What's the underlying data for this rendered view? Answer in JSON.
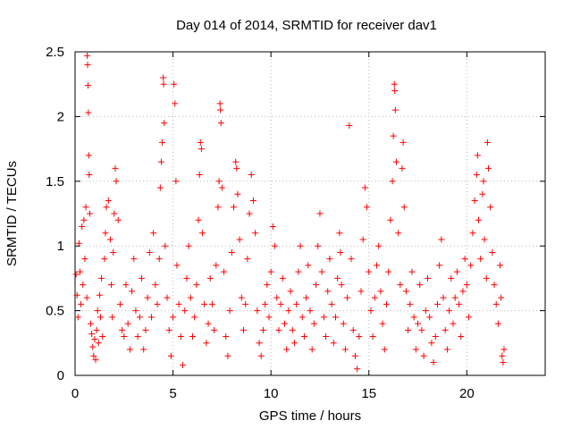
{
  "chart_data": {
    "type": "scatter",
    "title": "Day 014 of 2014, SRMTID for receiver dav1",
    "xlabel": "GPS time / hours",
    "ylabel": "SRMTID / TECUs",
    "xlim": [
      0,
      24
    ],
    "ylim": [
      0,
      2.5
    ],
    "xticks": [
      0,
      5,
      10,
      15,
      20
    ],
    "xtick_labels": [
      "0",
      "5",
      "10",
      "15",
      "20"
    ],
    "yticks": [
      0,
      0.5,
      1,
      1.5,
      2,
      2.5
    ],
    "ytick_labels": [
      "0",
      "0.5",
      "1",
      "1.5",
      "2",
      "2.5"
    ],
    "grid": true,
    "marker": "+",
    "series": [
      {
        "name": "SRMTID",
        "color": "#ff0000",
        "points": [
          [
            0.05,
            0.78
          ],
          [
            0.1,
            0.62
          ],
          [
            0.15,
            0.45
          ],
          [
            0.2,
            1.02
          ],
          [
            0.25,
            0.8
          ],
          [
            0.3,
            0.55
          ],
          [
            0.35,
            1.15
          ],
          [
            0.4,
            0.7
          ],
          [
            0.45,
            1.2
          ],
          [
            0.5,
            0.9
          ],
          [
            0.55,
            1.3
          ],
          [
            0.6,
            0.6
          ],
          [
            0.62,
            2.47
          ],
          [
            0.64,
            2.4
          ],
          [
            0.66,
            2.24
          ],
          [
            0.68,
            2.03
          ],
          [
            0.7,
            1.7
          ],
          [
            0.72,
            1.55
          ],
          [
            0.75,
            1.25
          ],
          [
            0.8,
            0.4
          ],
          [
            0.85,
            0.32
          ],
          [
            0.9,
            0.22
          ],
          [
            0.95,
            0.15
          ],
          [
            1.0,
            0.28
          ],
          [
            1.05,
            0.12
          ],
          [
            1.1,
            0.35
          ],
          [
            1.15,
            0.5
          ],
          [
            1.2,
            0.25
          ],
          [
            1.25,
            0.62
          ],
          [
            1.3,
            0.45
          ],
          [
            1.35,
            0.75
          ],
          [
            1.4,
            0.3
          ],
          [
            1.5,
            0.9
          ],
          [
            1.55,
            1.1
          ],
          [
            1.6,
            1.3
          ],
          [
            1.7,
            1.35
          ],
          [
            1.8,
            1.05
          ],
          [
            1.85,
            0.7
          ],
          [
            1.9,
            0.45
          ],
          [
            1.95,
            0.95
          ],
          [
            2.0,
            1.25
          ],
          [
            2.05,
            1.6
          ],
          [
            2.1,
            1.5
          ],
          [
            2.2,
            1.2
          ],
          [
            2.3,
            0.55
          ],
          [
            2.4,
            0.35
          ],
          [
            2.5,
            0.3
          ],
          [
            2.6,
            0.7
          ],
          [
            2.7,
            0.4
          ],
          [
            2.8,
            0.2
          ],
          [
            2.9,
            0.65
          ],
          [
            3.0,
            0.9
          ],
          [
            3.1,
            0.5
          ],
          [
            3.2,
            0.3
          ],
          [
            3.3,
            0.45
          ],
          [
            3.4,
            0.75
          ],
          [
            3.5,
            0.2
          ],
          [
            3.6,
            0.35
          ],
          [
            3.7,
            0.6
          ],
          [
            3.8,
            0.95
          ],
          [
            3.9,
            0.45
          ],
          [
            4.0,
            1.1
          ],
          [
            4.1,
            0.7
          ],
          [
            4.2,
            0.55
          ],
          [
            4.3,
            0.9
          ],
          [
            4.35,
            1.45
          ],
          [
            4.4,
            1.65
          ],
          [
            4.45,
            1.8
          ],
          [
            4.5,
            2.3
          ],
          [
            4.52,
            2.25
          ],
          [
            4.55,
            1.95
          ],
          [
            4.6,
            1.0
          ],
          [
            4.7,
            0.6
          ],
          [
            4.8,
            0.35
          ],
          [
            4.9,
            0.15
          ],
          [
            5.0,
            0.45
          ],
          [
            5.05,
            2.25
          ],
          [
            5.1,
            2.1
          ],
          [
            5.15,
            1.5
          ],
          [
            5.2,
            0.85
          ],
          [
            5.3,
            0.55
          ],
          [
            5.4,
            0.3
          ],
          [
            5.5,
            0.08
          ],
          [
            5.6,
            0.5
          ],
          [
            5.7,
            0.75
          ],
          [
            5.8,
            1.0
          ],
          [
            5.9,
            0.6
          ],
          [
            6.0,
            0.3
          ],
          [
            6.1,
            0.45
          ],
          [
            6.2,
            0.7
          ],
          [
            6.3,
            1.2
          ],
          [
            6.35,
            1.55
          ],
          [
            6.4,
            1.8
          ],
          [
            6.45,
            1.75
          ],
          [
            6.5,
            1.1
          ],
          [
            6.6,
            0.55
          ],
          [
            6.7,
            0.25
          ],
          [
            6.8,
            0.4
          ],
          [
            6.9,
            0.75
          ],
          [
            7.0,
            0.55
          ],
          [
            7.1,
            0.35
          ],
          [
            7.2,
            0.85
          ],
          [
            7.3,
            1.3
          ],
          [
            7.35,
            1.5
          ],
          [
            7.4,
            2.1
          ],
          [
            7.42,
            2.05
          ],
          [
            7.45,
            1.95
          ],
          [
            7.5,
            1.45
          ],
          [
            7.6,
            0.8
          ],
          [
            7.7,
            0.3
          ],
          [
            7.8,
            0.15
          ],
          [
            7.9,
            0.5
          ],
          [
            8.0,
            0.95
          ],
          [
            8.1,
            1.3
          ],
          [
            8.2,
            1.65
          ],
          [
            8.25,
            1.6
          ],
          [
            8.3,
            1.4
          ],
          [
            8.4,
            1.05
          ],
          [
            8.5,
            0.6
          ],
          [
            8.6,
            0.35
          ],
          [
            8.7,
            0.55
          ],
          [
            8.8,
            0.9
          ],
          [
            8.9,
            1.25
          ],
          [
            9.0,
            1.55
          ],
          [
            9.1,
            1.35
          ],
          [
            9.2,
            1.1
          ],
          [
            9.3,
            0.5
          ],
          [
            9.4,
            0.25
          ],
          [
            9.5,
            0.15
          ],
          [
            9.6,
            0.35
          ],
          [
            9.7,
            0.55
          ],
          [
            9.8,
            0.7
          ],
          [
            9.9,
            0.45
          ],
          [
            10.0,
            0.8
          ],
          [
            10.1,
            1.15
          ],
          [
            10.2,
            1.0
          ],
          [
            10.3,
            0.6
          ],
          [
            10.4,
            0.35
          ],
          [
            10.5,
            0.55
          ],
          [
            10.6,
            0.75
          ],
          [
            10.7,
            0.4
          ],
          [
            10.8,
            0.2
          ],
          [
            10.9,
            0.5
          ],
          [
            11.0,
            0.65
          ],
          [
            11.1,
            0.35
          ],
          [
            11.2,
            0.25
          ],
          [
            11.3,
            0.55
          ],
          [
            11.4,
            0.8
          ],
          [
            11.5,
            1.0
          ],
          [
            11.6,
            0.45
          ],
          [
            11.7,
            0.3
          ],
          [
            11.8,
            0.6
          ],
          [
            11.9,
            0.85
          ],
          [
            12.0,
            0.5
          ],
          [
            12.1,
            0.2
          ],
          [
            12.2,
            0.4
          ],
          [
            12.3,
            0.7
          ],
          [
            12.4,
            1.0
          ],
          [
            12.5,
            1.25
          ],
          [
            12.6,
            0.8
          ],
          [
            12.7,
            0.45
          ],
          [
            12.8,
            0.3
          ],
          [
            12.9,
            0.65
          ],
          [
            13.0,
            0.9
          ],
          [
            13.1,
            0.55
          ],
          [
            13.2,
            0.25
          ],
          [
            13.3,
            0.45
          ],
          [
            13.4,
            0.75
          ],
          [
            13.5,
            1.1
          ],
          [
            13.55,
            0.95
          ],
          [
            13.6,
            0.7
          ],
          [
            13.7,
            0.4
          ],
          [
            13.8,
            0.2
          ],
          [
            13.9,
            0.6
          ],
          [
            14.0,
            1.93
          ],
          [
            14.1,
            0.9
          ],
          [
            14.2,
            0.35
          ],
          [
            14.3,
            0.15
          ],
          [
            14.4,
            0.05
          ],
          [
            14.5,
            0.3
          ],
          [
            14.6,
            0.65
          ],
          [
            14.7,
            1.05
          ],
          [
            14.8,
            1.45
          ],
          [
            14.9,
            1.3
          ],
          [
            15.0,
            0.8
          ],
          [
            15.1,
            0.5
          ],
          [
            15.2,
            0.3
          ],
          [
            15.3,
            0.6
          ],
          [
            15.4,
            0.85
          ],
          [
            15.5,
            1.0
          ],
          [
            15.6,
            0.65
          ],
          [
            15.7,
            0.4
          ],
          [
            15.8,
            0.2
          ],
          [
            15.9,
            0.55
          ],
          [
            16.0,
            0.8
          ],
          [
            16.1,
            1.2
          ],
          [
            16.2,
            1.5
          ],
          [
            16.25,
            1.85
          ],
          [
            16.3,
            2.25
          ],
          [
            16.32,
            2.2
          ],
          [
            16.35,
            2.05
          ],
          [
            16.4,
            1.65
          ],
          [
            16.5,
            1.1
          ],
          [
            16.6,
            0.7
          ],
          [
            16.7,
            1.6
          ],
          [
            16.75,
            1.8
          ],
          [
            16.8,
            1.3
          ],
          [
            16.9,
            0.65
          ],
          [
            17.0,
            0.35
          ],
          [
            17.1,
            0.55
          ],
          [
            17.2,
            0.8
          ],
          [
            17.3,
            0.45
          ],
          [
            17.4,
            0.2
          ],
          [
            17.5,
            0.4
          ],
          [
            17.6,
            0.7
          ],
          [
            17.7,
            0.35
          ],
          [
            17.8,
            0.15
          ],
          [
            17.9,
            0.5
          ],
          [
            18.0,
            0.75
          ],
          [
            18.1,
            0.45
          ],
          [
            18.2,
            0.25
          ],
          [
            18.3,
            0.1
          ],
          [
            18.4,
            0.3
          ],
          [
            18.5,
            0.55
          ],
          [
            18.6,
            0.85
          ],
          [
            18.7,
            1.05
          ],
          [
            18.8,
            0.6
          ],
          [
            18.9,
            0.35
          ],
          [
            19.0,
            0.2
          ],
          [
            19.1,
            0.5
          ],
          [
            19.2,
            0.75
          ],
          [
            19.3,
            0.4
          ],
          [
            19.4,
            0.6
          ],
          [
            19.5,
            0.8
          ],
          [
            19.6,
            0.55
          ],
          [
            19.7,
            0.3
          ],
          [
            19.8,
            0.65
          ],
          [
            19.9,
            0.9
          ],
          [
            20.0,
            0.7
          ],
          [
            20.1,
            0.45
          ],
          [
            20.2,
            0.85
          ],
          [
            20.3,
            1.1
          ],
          [
            20.4,
            1.35
          ],
          [
            20.5,
            1.55
          ],
          [
            20.55,
            1.7
          ],
          [
            20.6,
            1.2
          ],
          [
            20.7,
            0.9
          ],
          [
            20.8,
            1.4
          ],
          [
            20.85,
            1.5
          ],
          [
            20.9,
            1.05
          ],
          [
            21.0,
            0.75
          ],
          [
            21.05,
            1.8
          ],
          [
            21.1,
            1.6
          ],
          [
            21.2,
            1.3
          ],
          [
            21.3,
            0.95
          ],
          [
            21.4,
            0.7
          ],
          [
            21.5,
            0.55
          ],
          [
            21.6,
            0.4
          ],
          [
            21.7,
            0.85
          ],
          [
            21.75,
            0.6
          ],
          [
            21.8,
            0.15
          ],
          [
            21.85,
            0.1
          ],
          [
            21.9,
            0.2
          ]
        ]
      }
    ]
  }
}
